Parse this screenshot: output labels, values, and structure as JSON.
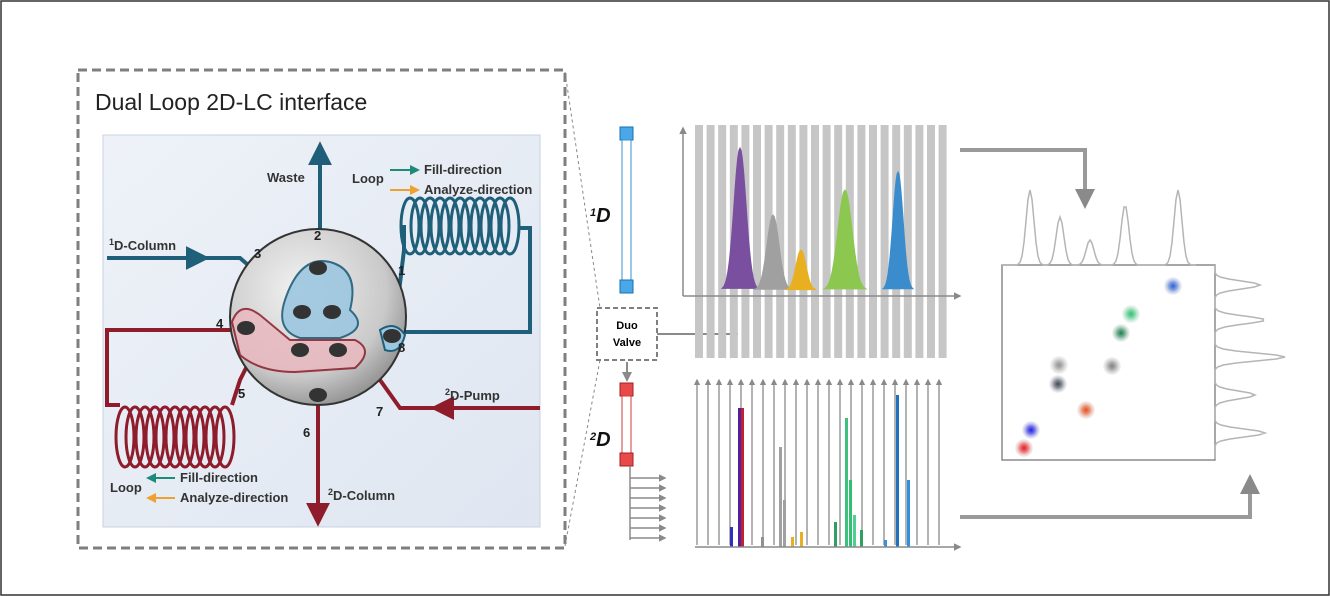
{
  "title": "Dual Loop 2D-LC interface",
  "valve": {
    "ports": [
      "1",
      "2",
      "3",
      "4",
      "5",
      "6",
      "7",
      "8"
    ],
    "waste": "Waste",
    "column1": {
      "sup": "1",
      "text": "D-Column"
    },
    "pump2": {
      "sup": "2",
      "text": "D-Pump"
    },
    "column2": {
      "sup": "2",
      "text": "D-Column"
    }
  },
  "legend_top": {
    "loop": "Loop",
    "fill": "Fill-direction",
    "analyze": "Analyze-direction"
  },
  "legend_bottom": {
    "loop": "Loop",
    "fill": "Fill-direction",
    "analyze": "Analyze-direction"
  },
  "dimension1": {
    "sup": "1",
    "text": "D"
  },
  "dimension2": {
    "sup": "2",
    "text": "D"
  },
  "duo_valve": [
    "Duo",
    "Valve"
  ]
}
